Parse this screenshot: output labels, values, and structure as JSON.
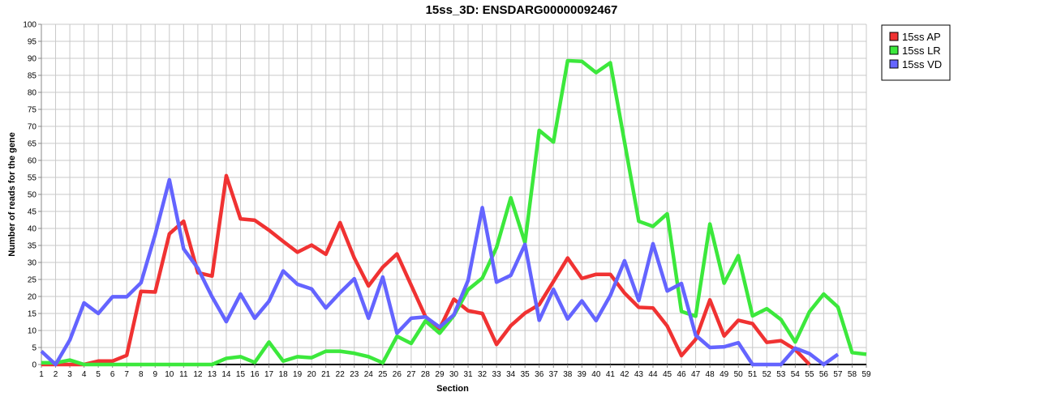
{
  "chart_data": {
    "type": "line",
    "title": "15ss_3D: ENSDARG00000092467",
    "xlabel": "Section",
    "ylabel": "Number of reads for the gene",
    "x": [
      1,
      2,
      3,
      4,
      5,
      6,
      7,
      8,
      9,
      10,
      11,
      12,
      13,
      14,
      15,
      16,
      17,
      18,
      19,
      20,
      21,
      22,
      23,
      24,
      25,
      26,
      27,
      28,
      29,
      30,
      31,
      32,
      33,
      34,
      35,
      36,
      37,
      38,
      39,
      40,
      41,
      42,
      43,
      44,
      45,
      46,
      47,
      48,
      49,
      50,
      51,
      52,
      53,
      54,
      55,
      56,
      57,
      58,
      59
    ],
    "xlim": [
      1,
      59
    ],
    "ylim": [
      0,
      100
    ],
    "yticks": [
      0,
      5,
      10,
      15,
      20,
      25,
      30,
      35,
      40,
      45,
      50,
      55,
      60,
      65,
      70,
      75,
      80,
      85,
      90,
      95,
      100
    ],
    "grid": true,
    "legend_position": "right",
    "series": [
      {
        "name": "15ss AP",
        "color": "#f03232",
        "values": [
          0,
          0,
          0,
          0,
          1,
          1,
          2.7,
          21.5,
          21.3,
          38.4,
          42.1,
          27,
          26,
          55.5,
          42.8,
          42.4,
          39.5,
          36.2,
          33,
          35.1,
          32.4,
          41.7,
          31.3,
          23.1,
          28.6,
          32.5,
          23.3,
          14.1,
          10.5,
          19.2,
          15.8,
          15,
          5.9,
          11.4,
          15.1,
          17.6,
          24.4,
          31.3,
          25.3,
          26.5,
          26.5,
          21,
          16.8,
          16.6,
          11.3,
          2.6,
          7.4,
          19,
          8.4,
          13,
          12,
          6.5,
          7,
          4.4,
          0,
          null,
          null,
          null,
          null
        ]
      },
      {
        "name": "15ss LR",
        "color": "#3ce83c",
        "values": [
          0.5,
          0.5,
          1.3,
          0,
          0,
          0,
          0,
          0,
          0,
          0,
          0,
          0,
          0,
          1.8,
          2.3,
          0.6,
          6.6,
          1,
          2.3,
          2,
          3.9,
          3.9,
          3.3,
          2.3,
          0.5,
          8.3,
          6.2,
          12.8,
          9.2,
          14.4,
          22,
          25.4,
          34.4,
          49,
          35.8,
          68.8,
          65.4,
          89.3,
          89.1,
          85.8,
          88.7,
          65.4,
          42.1,
          40.6,
          44.3,
          15.6,
          14.2,
          41.3,
          23.9,
          32,
          14.3,
          16.4,
          13.2,
          6.6,
          15.5,
          20.7,
          16.9,
          3.5,
          3
        ]
      },
      {
        "name": "15ss VD",
        "color": "#6464ff",
        "values": [
          3.9,
          0,
          7.2,
          18.1,
          15,
          19.9,
          19.9,
          24,
          38.2,
          54.3,
          34,
          28.3,
          19.9,
          12.6,
          20.7,
          13.6,
          18.6,
          27.5,
          23.6,
          22.2,
          16.6,
          21.1,
          25.2,
          13.6,
          25.7,
          9.2,
          13.6,
          14,
          11,
          14.6,
          24.7,
          46.1,
          24.2,
          26.2,
          35.3,
          13,
          22.1,
          13.4,
          18.7,
          12.9,
          20.3,
          30.5,
          18.8,
          35.5,
          21.6,
          23.8,
          8.6,
          5,
          5.2,
          6.4,
          0,
          0,
          0,
          4.8,
          3.2,
          0,
          3,
          null,
          null
        ]
      }
    ]
  }
}
